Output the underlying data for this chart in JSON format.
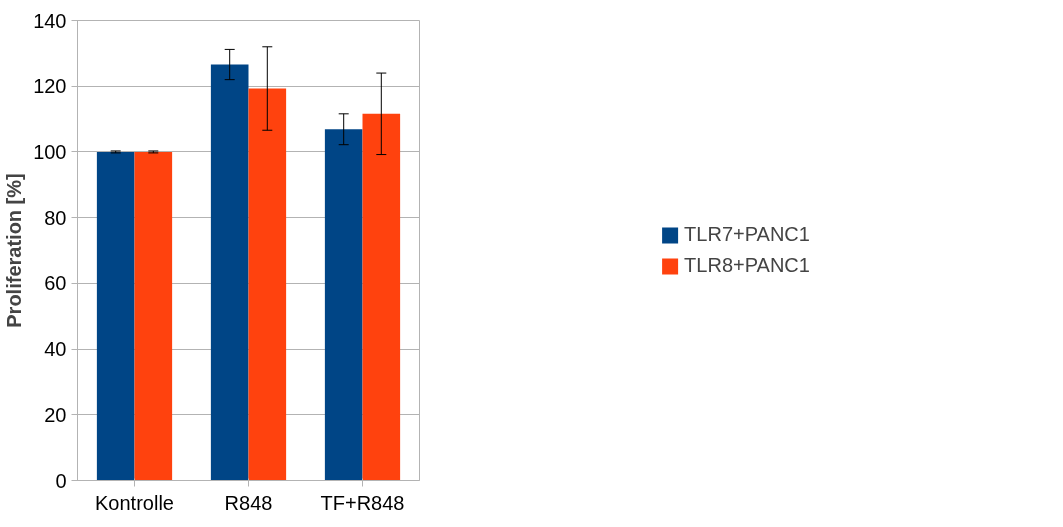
{
  "chart_data": {
    "type": "bar",
    "ylabel": "Proliferation [%]",
    "categories": [
      "Kontrolle",
      "R848",
      "TF+R848"
    ],
    "series": [
      {
        "name": "TLR7+PANC1",
        "color": "#004586",
        "values": [
          100,
          126.6,
          106.9
        ],
        "errors": [
          0.3,
          4.6,
          4.7
        ]
      },
      {
        "name": "TLR8+PANC1",
        "color": "#ff420e",
        "values": [
          100,
          119.3,
          111.6
        ],
        "errors": [
          0.3,
          12.7,
          12.4
        ]
      }
    ],
    "ylim": [
      0,
      140
    ],
    "yticks": [
      0,
      20,
      40,
      60,
      80,
      100,
      120,
      140
    ],
    "grid": "y",
    "legend": "right"
  }
}
